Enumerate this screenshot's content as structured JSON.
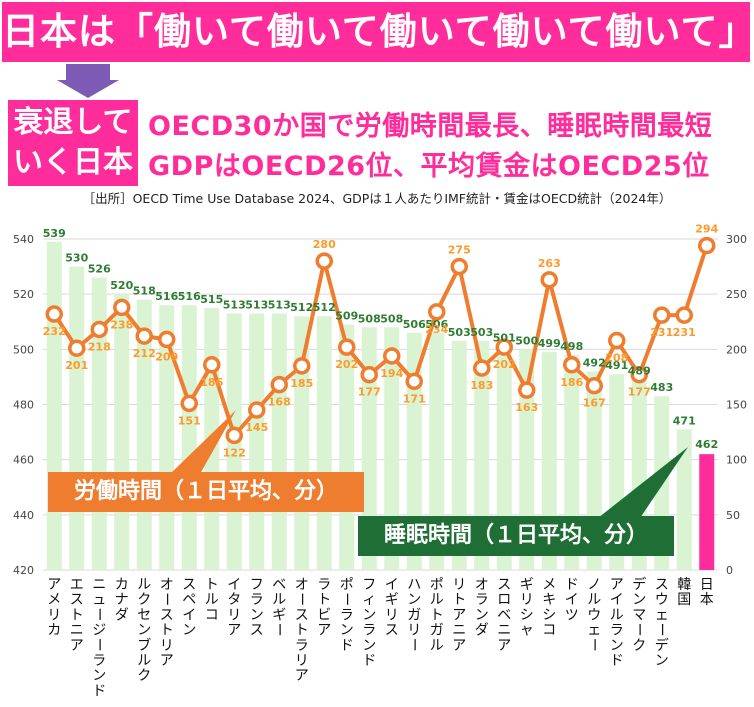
{
  "header": {
    "title": "日本は「働いて働いて働いて働いて働いて」",
    "decline_line1": "衰退して",
    "decline_line2": "いく日本",
    "sub1": "OECD30か国で労働時間最長、睡眠時間最短",
    "sub2": "GDPはOECD26位、平均賃金はOECD25位",
    "source": "［出所］OECD Time Use Database 2024、GDPは１人あたりIMF統計・賃金はOECD統計（2024年）"
  },
  "callouts": {
    "work": "労働時間（１日平均、分）",
    "sleep": "睡眠時間（１日平均、分）"
  },
  "colors": {
    "banner": "#ff2d9b",
    "arrow": "#7d5ab3",
    "bar": "#daf3d2",
    "bar_highlight": "#ff2d9b",
    "line": "#ef7d2f",
    "gdp_label": "#2e7d32",
    "sleep_callout": "#1e6e35"
  },
  "chart_data": {
    "type": "bar",
    "categories": [
      "アメリカ",
      "エストニア",
      "ニュージーランド",
      "カナダ",
      "ルクセンブルク",
      "オーストリア",
      "スペイン",
      "トルコ",
      "イタリア",
      "フランス",
      "ベルギー",
      "オーストラリア",
      "ラトビア",
      "ポーランド",
      "フィンランド",
      "イギリス",
      "ハンガリー",
      "ポルトガル",
      "リトアニア",
      "オランダ",
      "スロベニア",
      "ギリシャ",
      "メキシコ",
      "ドイツ",
      "ノルウェー",
      "アイルランド",
      "デンマーク",
      "スウェーデン",
      "韓国",
      "日本"
    ],
    "series": [
      {
        "values": [
          539,
          530,
          526,
          520,
          518,
          516,
          516,
          515,
          513,
          513,
          513,
          512,
          512,
          509,
          508,
          508,
          506,
          506,
          503,
          503,
          501,
          500,
          499,
          498,
          492,
          491,
          489,
          483,
          471,
          462
        ]
      },
      {
        "values": [
          232,
          201,
          218,
          238,
          212,
          209,
          151,
          186,
          122,
          145,
          168,
          185,
          280,
          202,
          177,
          194,
          171,
          234,
          275,
          183,
          202,
          163,
          263,
          186,
          167,
          208,
          177,
          231,
          231,
          294
        ]
      }
    ],
    "left_axis": {
      "min": 420,
      "max": 540,
      "ticks": [
        540,
        520,
        500,
        480,
        460,
        440,
        420
      ]
    },
    "right_axis": {
      "min": 0,
      "max": 300,
      "ticks": [
        300,
        250,
        200,
        150,
        100,
        50,
        0
      ]
    }
  }
}
